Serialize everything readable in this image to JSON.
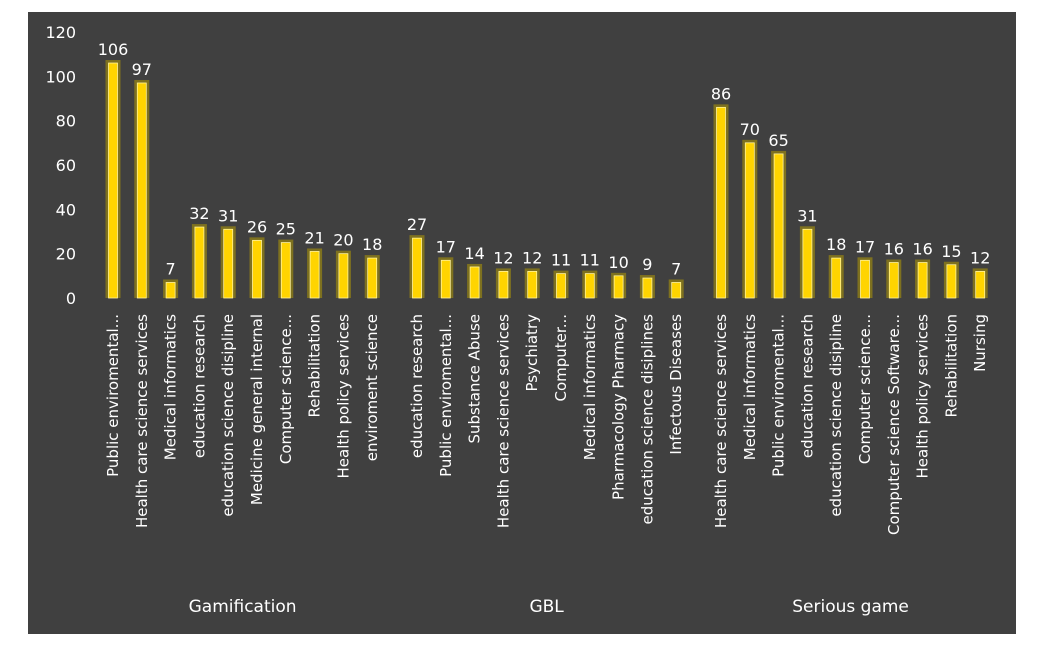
{
  "chart_data": {
    "type": "bar",
    "title": "",
    "xlabel": "",
    "ylabel": "",
    "ylim": [
      0,
      120
    ],
    "yticks": [
      0,
      20,
      40,
      60,
      80,
      100,
      120
    ],
    "grid": false,
    "legend": "none",
    "bar_color": "#ffd400",
    "bar_glow_color": "#8a7a1a",
    "background_color": "#404040",
    "groups": [
      {
        "name": "Gamification",
        "categories": [
          "Public enviromental...",
          "Health care science services",
          "Medical informatics",
          "education research",
          "education science disipline",
          "Medicine general internal",
          "Computer science...",
          "Rehabilitation",
          "Health policy services",
          "enviroment science"
        ],
        "values": [
          106,
          97,
          7,
          32,
          31,
          26,
          25,
          21,
          20,
          18
        ]
      },
      {
        "name": "GBL",
        "categories": [
          "education research",
          "Public enviromental...",
          "Substance Abuse",
          "Health care science services",
          "Psychiatry",
          "Computer...",
          "Medical informatics",
          "Pharmacology Pharmacy",
          "education science disiplines",
          "Infectous Diseases"
        ],
        "values": [
          27,
          17,
          14,
          12,
          12,
          11,
          11,
          10,
          9,
          7
        ]
      },
      {
        "name": "Serious game",
        "categories": [
          "Health care science services",
          "Medical informatics",
          "Public enviromental...",
          "education research",
          "education science disipline",
          "Computer science...",
          "Computer science Software...",
          "Health policy services",
          "Rehabilitation",
          "Nursing"
        ],
        "values": [
          86,
          70,
          65,
          31,
          18,
          17,
          16,
          16,
          15,
          12
        ]
      }
    ]
  }
}
